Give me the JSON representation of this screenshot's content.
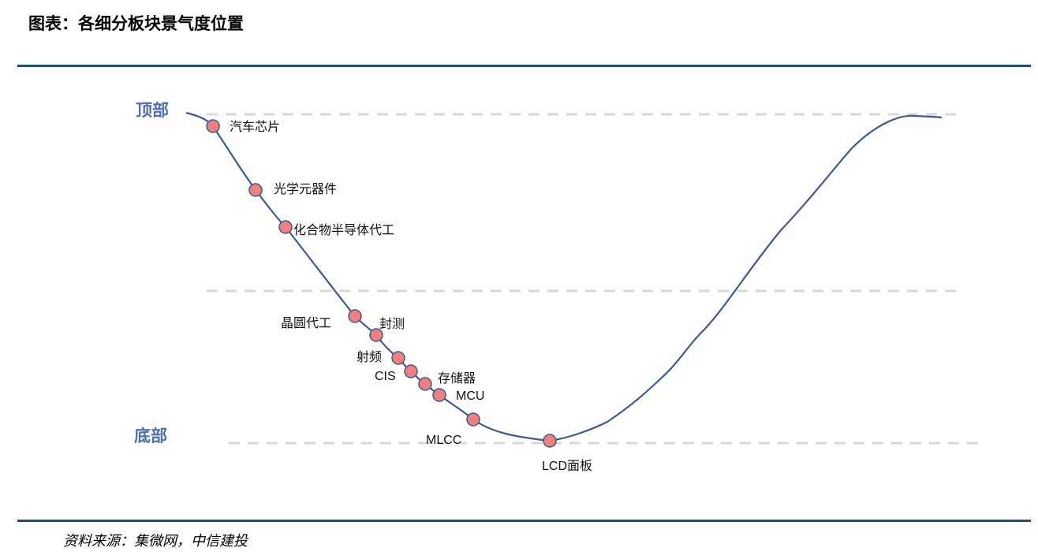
{
  "title": "图表：各细分板块景气度位置",
  "source": "资料来源：集微网，中信建投",
  "levels": {
    "top": "顶部",
    "bottom": "底部"
  },
  "colors": {
    "curve": "#3a5a94",
    "point_fill": "#f08080",
    "point_stroke": "#3a5a94",
    "dash": "#d9d9d9",
    "rule": "#1f4e79",
    "level_text": "#4f6fae"
  },
  "points": [
    {
      "id": "auto-chip",
      "label": "汽车芯片"
    },
    {
      "id": "optical",
      "label": "光学元器件"
    },
    {
      "id": "compound-foundry",
      "label": "化合物半导体代工"
    },
    {
      "id": "wafer-foundry",
      "label": "晶圆代工"
    },
    {
      "id": "packaging-test",
      "label": "封测"
    },
    {
      "id": "rf",
      "label": "射频"
    },
    {
      "id": "cis",
      "label": "CIS"
    },
    {
      "id": "memory",
      "label": "存储器"
    },
    {
      "id": "mcu",
      "label": "MCU"
    },
    {
      "id": "mlcc",
      "label": "MLCC"
    },
    {
      "id": "lcd",
      "label": "LCD面板"
    }
  ]
}
